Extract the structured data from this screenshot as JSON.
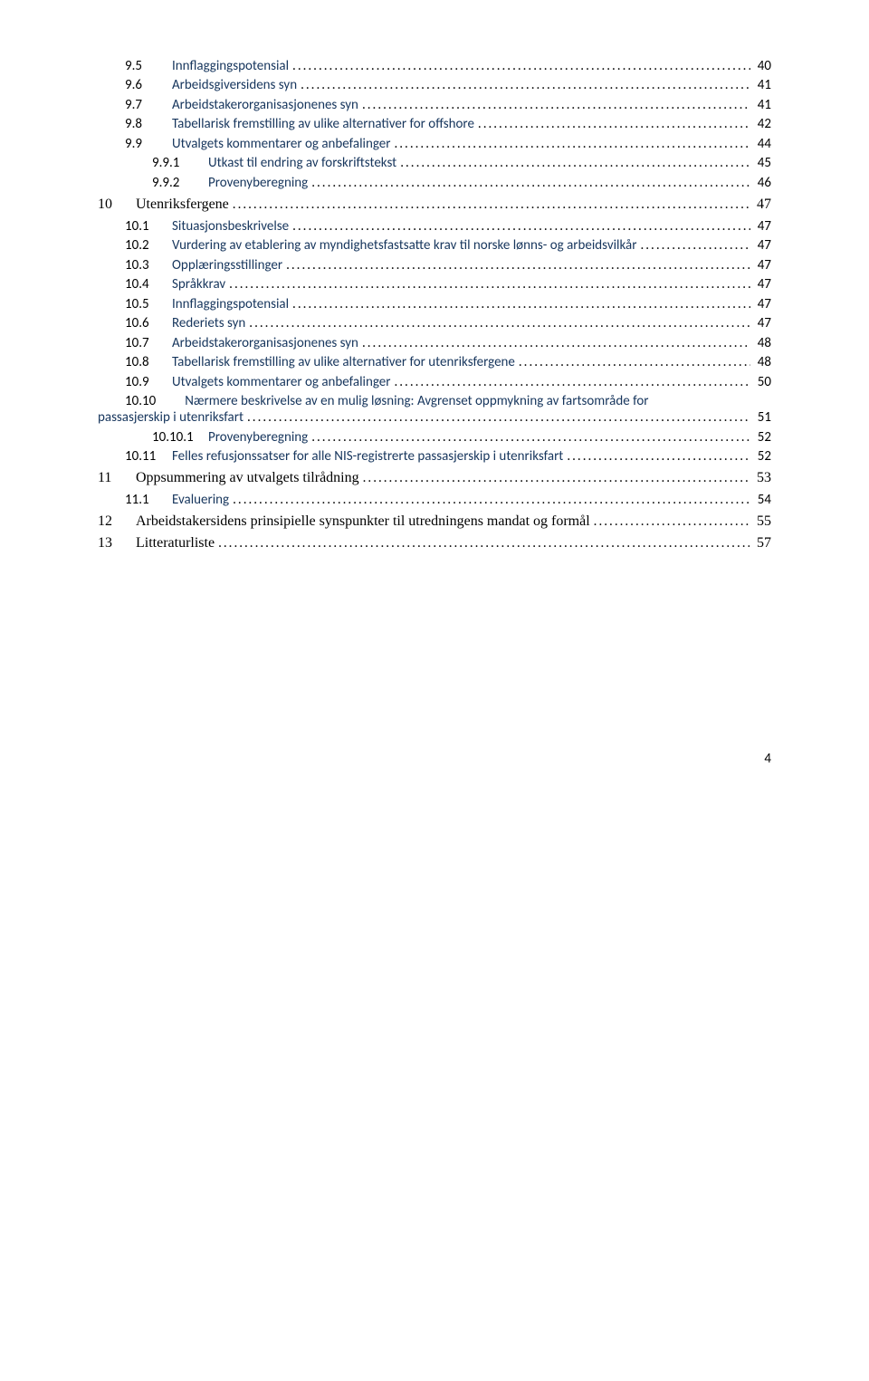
{
  "colors": {
    "text": "#000000",
    "subheading": "#17365d",
    "background": "#ffffff"
  },
  "typography": {
    "body_font": "Calibri",
    "section_font": "Times New Roman",
    "body_size_pt": 11,
    "section_size_pt": 12
  },
  "toc": [
    {
      "num": "9.5",
      "title": "Innflaggingspotensial",
      "page": "40",
      "indent": 1,
      "level": "sub"
    },
    {
      "num": "9.6",
      "title": "Arbeidsgiversidens syn",
      "page": "41",
      "indent": 1,
      "level": "sub"
    },
    {
      "num": "9.7",
      "title": "Arbeidstakerorganisasjonenes syn",
      "page": "41",
      "indent": 1,
      "level": "sub"
    },
    {
      "num": "9.8",
      "title": "Tabellarisk fremstilling av ulike alternativer for offshore",
      "page": "42",
      "indent": 1,
      "level": "sub"
    },
    {
      "num": "9.9",
      "title": "Utvalgets kommentarer  og anbefalinger",
      "page": "44",
      "indent": 1,
      "level": "sub"
    },
    {
      "num": "9.9.1",
      "title": "Utkast til endring av forskriftstekst",
      "page": "45",
      "indent": 2,
      "level": "sub"
    },
    {
      "num": "9.9.2",
      "title": "Provenyberegning",
      "page": "46",
      "indent": 2,
      "level": "sub"
    },
    {
      "num": "10",
      "title": "Utenriksfergene",
      "page": "47",
      "indent": 0,
      "level": "section"
    },
    {
      "num": "10.1",
      "title": "Situasjonsbeskrivelse",
      "page": "47",
      "indent": 1,
      "level": "sub"
    },
    {
      "num": "10.2",
      "title": "Vurdering av etablering av myndighetsfastsatte krav til norske lønns- og arbeidsvilkår",
      "page": "47",
      "indent": 1,
      "level": "sub"
    },
    {
      "num": "10.3",
      "title": "Opplæringsstillinger",
      "page": "47",
      "indent": 1,
      "level": "sub"
    },
    {
      "num": "10.4",
      "title": "Språkkrav",
      "page": "47",
      "indent": 1,
      "level": "sub"
    },
    {
      "num": "10.5",
      "title": "Innflaggingspotensial",
      "page": "47",
      "indent": 1,
      "level": "sub"
    },
    {
      "num": "10.6",
      "title": "Rederiets syn",
      "page": "47",
      "indent": 1,
      "level": "sub"
    },
    {
      "num": "10.7",
      "title": "Arbeidstakerorganisasjonenes syn",
      "page": "48",
      "indent": 1,
      "level": "sub"
    },
    {
      "num": "10.8",
      "title": "Tabellarisk fremstilling av ulike alternativer for utenriksfergene",
      "page": "48",
      "indent": 1,
      "level": "sub"
    },
    {
      "num": "10.9",
      "title": "Utvalgets kommentarer og anbefalinger",
      "page": "50",
      "indent": 1,
      "level": "sub"
    },
    {
      "num": "10.10",
      "title_line1": "Nærmere beskrivelse av en mulig løsning: Avgrenset oppmykning av fartsområde for",
      "title_line2": "passasjerskip i utenriksfart",
      "page": "51",
      "indent": 1,
      "level": "sub",
      "wrap": true
    },
    {
      "num": "10.10.1",
      "title": "Provenyberegning",
      "page": "52",
      "indent": 2,
      "level": "sub"
    },
    {
      "num": "10.11",
      "title": "Felles refusjonssatser for alle NIS-registrerte passasjerskip i utenriksfart",
      "page": "52",
      "indent": 1,
      "level": "sub"
    },
    {
      "num": "11",
      "title": "Oppsummering av utvalgets tilrådning",
      "page": "53",
      "indent": 0,
      "level": "section"
    },
    {
      "num": "11.1",
      "title": "Evaluering",
      "page": "54",
      "indent": 1,
      "level": "sub"
    },
    {
      "num": "12",
      "title": "Arbeidstakersidens prinsipielle synspunkter til utredningens mandat og formål",
      "page": "55",
      "indent": 0,
      "level": "section"
    },
    {
      "num": "13",
      "title": "Litteraturliste",
      "page": "57",
      "indent": 0,
      "level": "section"
    }
  ],
  "footer_page_number": "4"
}
